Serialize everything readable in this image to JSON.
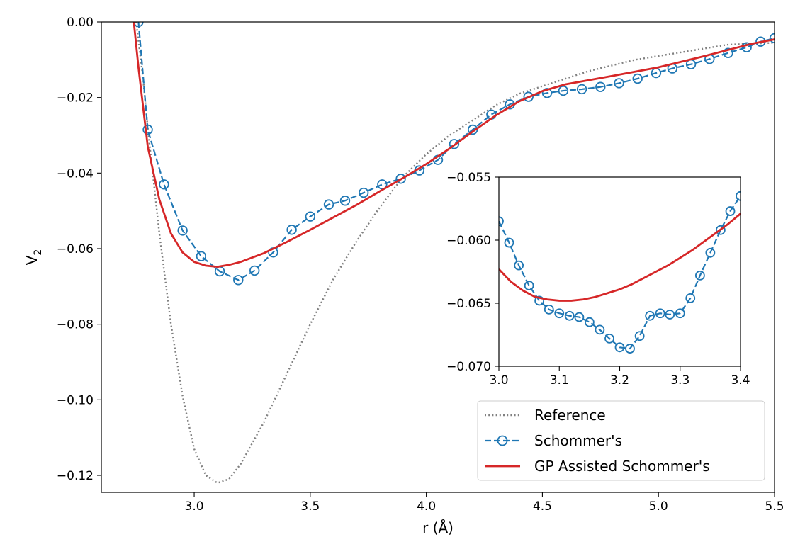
{
  "chart_data": [
    {
      "id": "main",
      "type": "line",
      "title": "",
      "xlabel": "r (Å)",
      "ylabel": "V",
      "ylabel_sub": "2",
      "xlim": [
        2.6,
        5.5
      ],
      "ylim": [
        -0.1245,
        0.0
      ],
      "xticks": [
        3.0,
        3.5,
        4.0,
        4.5,
        5.0,
        5.5
      ],
      "xtick_labels": [
        "3.0",
        "3.5",
        "4.0",
        "4.5",
        "5.0",
        "5.5"
      ],
      "yticks": [
        0.0,
        -0.02,
        -0.04,
        -0.06,
        -0.08,
        -0.1,
        -0.12
      ],
      "ytick_labels": [
        "0.00",
        "−0.02",
        "−0.04",
        "−0.06",
        "−0.08",
        "−0.10",
        "−0.12"
      ],
      "grid": false,
      "legend_position": "bottom-right",
      "series": [
        {
          "name": "Reference",
          "style": "dotted",
          "color": "#808080",
          "x": [
            2.75,
            2.78,
            2.8,
            2.85,
            2.9,
            2.95,
            3.0,
            3.05,
            3.1,
            3.15,
            3.2,
            3.3,
            3.4,
            3.5,
            3.6,
            3.7,
            3.8,
            3.9,
            4.0,
            4.1,
            4.2,
            4.3,
            4.4,
            4.5,
            4.7,
            4.9,
            5.1,
            5.3,
            5.5
          ],
          "y": [
            0.0,
            -0.015,
            -0.028,
            -0.056,
            -0.08,
            -0.099,
            -0.113,
            -0.12,
            -0.122,
            -0.121,
            -0.117,
            -0.106,
            -0.093,
            -0.08,
            -0.068,
            -0.058,
            -0.049,
            -0.041,
            -0.035,
            -0.03,
            -0.026,
            -0.022,
            -0.019,
            -0.017,
            -0.013,
            -0.01,
            -0.008,
            -0.006,
            -0.0055
          ]
        },
        {
          "name": "Schommer's",
          "style": "dashed-circle",
          "color": "#1f77b4",
          "x": [
            2.76,
            2.8,
            2.87,
            2.95,
            3.03,
            3.11,
            3.19,
            3.26,
            3.34,
            3.42,
            3.5,
            3.58,
            3.65,
            3.73,
            3.81,
            3.89,
            3.97,
            4.05,
            4.12,
            4.2,
            4.28,
            4.36,
            4.44,
            4.52,
            4.59,
            4.67,
            4.75,
            4.83,
            4.91,
            4.99,
            5.06,
            5.14,
            5.22,
            5.3,
            5.38,
            5.44,
            5.5
          ],
          "y": [
            0.0,
            -0.0285,
            -0.043,
            -0.0552,
            -0.062,
            -0.066,
            -0.0683,
            -0.0658,
            -0.061,
            -0.055,
            -0.0515,
            -0.0483,
            -0.0473,
            -0.0452,
            -0.043,
            -0.0415,
            -0.0393,
            -0.0365,
            -0.0323,
            -0.0285,
            -0.0245,
            -0.0218,
            -0.0198,
            -0.0188,
            -0.0182,
            -0.0178,
            -0.0172,
            -0.0162,
            -0.015,
            -0.0135,
            -0.0123,
            -0.0112,
            -0.0098,
            -0.0082,
            -0.0067,
            -0.0052,
            -0.0043
          ]
        },
        {
          "name": "GP Assisted Schommer's",
          "style": "solid",
          "color": "#d62728",
          "x": [
            2.74,
            2.76,
            2.8,
            2.85,
            2.9,
            2.95,
            3.0,
            3.05,
            3.1,
            3.15,
            3.2,
            3.3,
            3.4,
            3.5,
            3.6,
            3.7,
            3.8,
            3.9,
            4.0,
            4.1,
            4.2,
            4.3,
            4.4,
            4.5,
            4.6,
            4.8,
            5.0,
            5.2,
            5.4,
            5.5
          ],
          "y": [
            0.0,
            -0.012,
            -0.033,
            -0.047,
            -0.056,
            -0.061,
            -0.0635,
            -0.0645,
            -0.0648,
            -0.0643,
            -0.0635,
            -0.0612,
            -0.0582,
            -0.055,
            -0.0517,
            -0.0484,
            -0.0448,
            -0.0413,
            -0.0376,
            -0.0335,
            -0.029,
            -0.0247,
            -0.021,
            -0.0183,
            -0.0165,
            -0.0143,
            -0.012,
            -0.009,
            -0.0058,
            -0.0046
          ]
        }
      ]
    },
    {
      "id": "inset",
      "type": "line",
      "title": "",
      "xlim": [
        3.0,
        3.4
      ],
      "ylim": [
        -0.07,
        -0.055
      ],
      "xticks": [
        3.0,
        3.1,
        3.2,
        3.3,
        3.4
      ],
      "xtick_labels": [
        "3.0",
        "3.1",
        "3.2",
        "3.3",
        "3.4"
      ],
      "yticks": [
        -0.055,
        -0.06,
        -0.065,
        -0.07
      ],
      "ytick_labels": [
        "−0.055",
        "−0.060",
        "−0.065",
        "−0.070"
      ],
      "grid": false,
      "series": [
        {
          "name": "Schommer's",
          "style": "dashed-circle",
          "color": "#1f77b4",
          "x": [
            3.0,
            3.017,
            3.033,
            3.05,
            3.067,
            3.083,
            3.1,
            3.117,
            3.133,
            3.15,
            3.167,
            3.183,
            3.2,
            3.217,
            3.233,
            3.25,
            3.267,
            3.283,
            3.3,
            3.317,
            3.333,
            3.35,
            3.367,
            3.383,
            3.4
          ],
          "y": [
            -0.0585,
            -0.0602,
            -0.062,
            -0.0636,
            -0.0648,
            -0.0655,
            -0.0658,
            -0.066,
            -0.0661,
            -0.0665,
            -0.0671,
            -0.0678,
            -0.0685,
            -0.0686,
            -0.0676,
            -0.066,
            -0.0658,
            -0.0659,
            -0.0658,
            -0.0646,
            -0.0628,
            -0.061,
            -0.0592,
            -0.0577,
            -0.0565
          ]
        },
        {
          "name": "GP Assisted Schommer's",
          "style": "solid",
          "color": "#d62728",
          "x": [
            3.0,
            3.02,
            3.04,
            3.06,
            3.08,
            3.1,
            3.12,
            3.14,
            3.16,
            3.18,
            3.2,
            3.22,
            3.24,
            3.26,
            3.28,
            3.3,
            3.32,
            3.34,
            3.36,
            3.38,
            3.4
          ],
          "y": [
            -0.0623,
            -0.0633,
            -0.064,
            -0.0645,
            -0.0647,
            -0.0648,
            -0.0648,
            -0.0647,
            -0.0645,
            -0.0642,
            -0.0639,
            -0.0635,
            -0.063,
            -0.0625,
            -0.062,
            -0.0614,
            -0.0608,
            -0.0601,
            -0.0594,
            -0.0587,
            -0.0579
          ]
        }
      ]
    }
  ]
}
